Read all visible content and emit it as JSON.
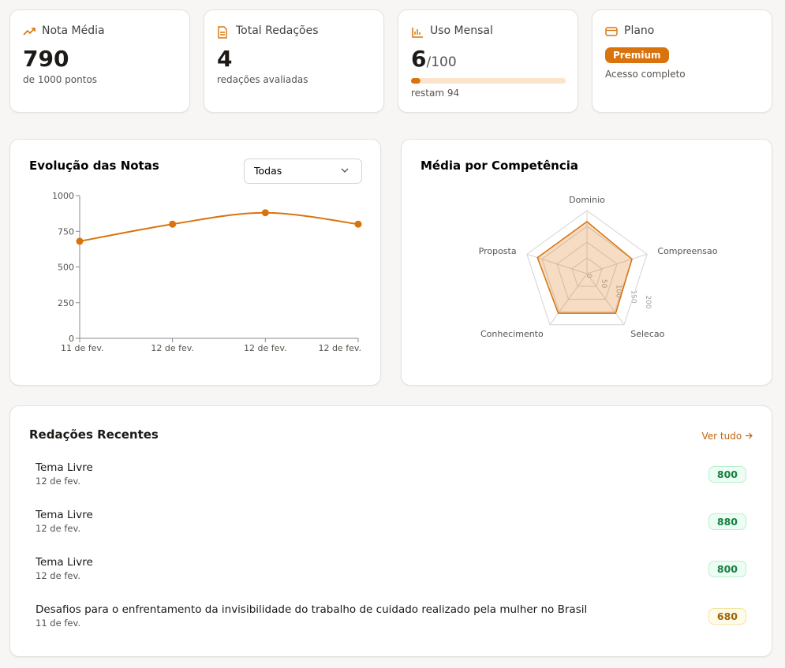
{
  "cards": [
    {
      "title": "Nota Média",
      "value": 790,
      "sub": "de 1000 pontos"
    },
    {
      "title": "Total Redações",
      "value": 4,
      "sub": "redações avaliadas"
    },
    {
      "title": "Uso Mensal",
      "value": 6,
      "limit": {
        "value": 100,
        "label": "/100"
      },
      "sub": "restam 94"
    },
    {
      "title": "Plano",
      "badge": "Premium",
      "sub": "Acesso completo"
    }
  ],
  "chart_data": [
    {
      "type": "line",
      "title": "Evolução das Notas",
      "filter": "Todas",
      "categories": [
        "11 de fev.",
        "12 de fev.",
        "12 de fev.",
        "12 de fev."
      ],
      "values": [
        680,
        800,
        880,
        800
      ],
      "color": "#d9730d",
      "ylim": [
        0,
        1000
      ],
      "yticks": [
        0,
        250,
        500,
        750,
        1000
      ]
    },
    {
      "type": "radar",
      "title": "Média por Competência",
      "categories": [
        "Dominio",
        "Compreensao",
        "Selecao",
        "Conhecimento",
        "Proposta"
      ],
      "values": [
        165,
        150,
        155,
        155,
        165
      ],
      "color": "#d9730d",
      "rlim": [
        0,
        200
      ],
      "rticks": [
        0,
        50,
        100,
        150,
        200
      ]
    }
  ],
  "recent": {
    "title": "Redações Recentes",
    "link": "Ver tudo",
    "items": [
      {
        "title": "Tema Livre",
        "date": "12 de fev.",
        "score": 800,
        "tone": "green"
      },
      {
        "title": "Tema Livre",
        "date": "12 de fev.",
        "score": 880,
        "tone": "green"
      },
      {
        "title": "Tema Livre",
        "date": "12 de fev.",
        "score": 800,
        "tone": "green"
      },
      {
        "title": "Desafios para o enfrentamento da invisibilidade do trabalho de cuidado realizado pela mulher no Brasil",
        "date": "11 de fev.",
        "score": 680,
        "tone": "yellow"
      }
    ]
  }
}
